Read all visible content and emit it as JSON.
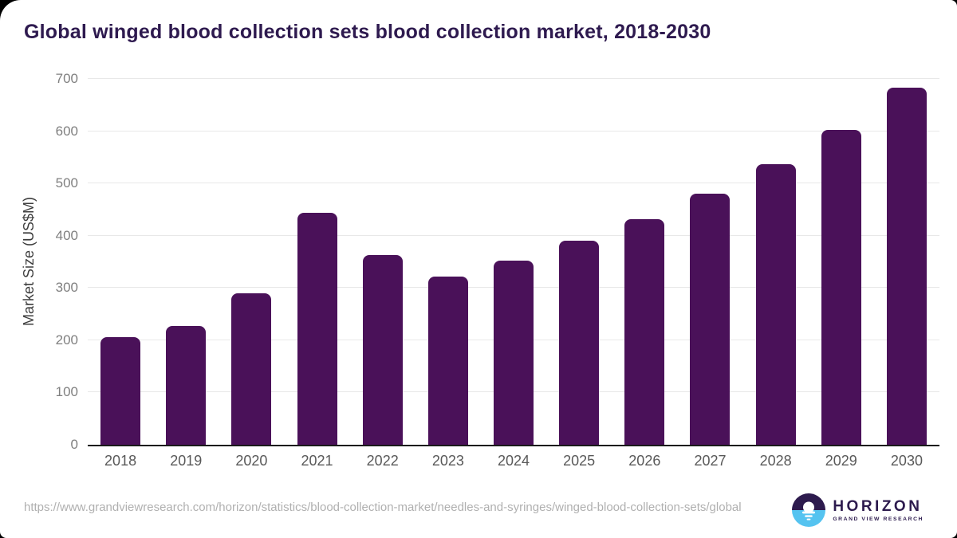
{
  "title": "Global winged blood collection sets blood collection market, 2018-2030",
  "chart_data": {
    "type": "bar",
    "title": "Global winged blood collection sets blood collection market, 2018-2030",
    "categories": [
      "2018",
      "2019",
      "2020",
      "2021",
      "2022",
      "2023",
      "2024",
      "2025",
      "2026",
      "2027",
      "2028",
      "2029",
      "2030"
    ],
    "values": [
      206,
      227,
      290,
      444,
      363,
      322,
      352,
      390,
      431,
      480,
      537,
      602,
      684
    ],
    "xlabel": "",
    "ylabel": "Market Size (US$M)",
    "ylim": [
      0,
      700
    ],
    "yticks": [
      0,
      100,
      200,
      300,
      400,
      500,
      600,
      700
    ],
    "grid": true,
    "legend": false,
    "bar_color": "#4a1159"
  },
  "footer": {
    "source_url": "https://www.grandviewresearch.com/horizon/statistics/blood-collection-market/needles-and-syringes/winged-blood-collection-sets/global"
  },
  "logo": {
    "name": "HORIZON",
    "subtitle": "GRAND VIEW RESEARCH",
    "icon": "horizon-sunset-circle-icon",
    "purple": "#2d1b4e",
    "blue": "#55c3f0"
  },
  "colors": {
    "bar": "#4a1159",
    "title_text": "#2e1a4f",
    "axis_line": "#1a1a1a",
    "grid_line": "#e8e8e8",
    "y_tick_label": "#7f7f7f",
    "x_label": "#595959",
    "url_text": "#b0b0b0",
    "page_background": "#000000",
    "card_background": "#ffffff"
  }
}
